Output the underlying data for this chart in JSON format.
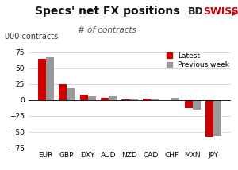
{
  "categories": [
    "EUR",
    "GBP",
    "DXY",
    "AUD",
    "NZD",
    "CAD",
    "CHF",
    "MXN",
    "JPY"
  ],
  "latest": [
    65,
    25,
    8,
    4,
    1,
    2,
    0,
    -12,
    -57
  ],
  "previous_week": [
    67,
    19,
    6,
    6,
    2,
    2,
    4,
    -15,
    -56
  ],
  "bar_color_latest": "#cc0000",
  "bar_color_prev": "#999999",
  "title": "Specs' net FX positions",
  "subtitle": "# of contracts",
  "ylabel": "000 contracts",
  "ylim": [
    -75,
    82
  ],
  "yticks": [
    -75,
    -50,
    -25,
    0,
    25,
    50,
    75
  ],
  "legend_latest": "Latest",
  "legend_prev": "Previous week",
  "background_color": "#ffffff",
  "title_fontsize": 10,
  "subtitle_fontsize": 7.5,
  "ylabel_fontsize": 7,
  "tick_fontsize": 6.5,
  "logo_fontsize": 9,
  "logo_color_bd": "#222222",
  "logo_color_swiss": "#cc0000"
}
